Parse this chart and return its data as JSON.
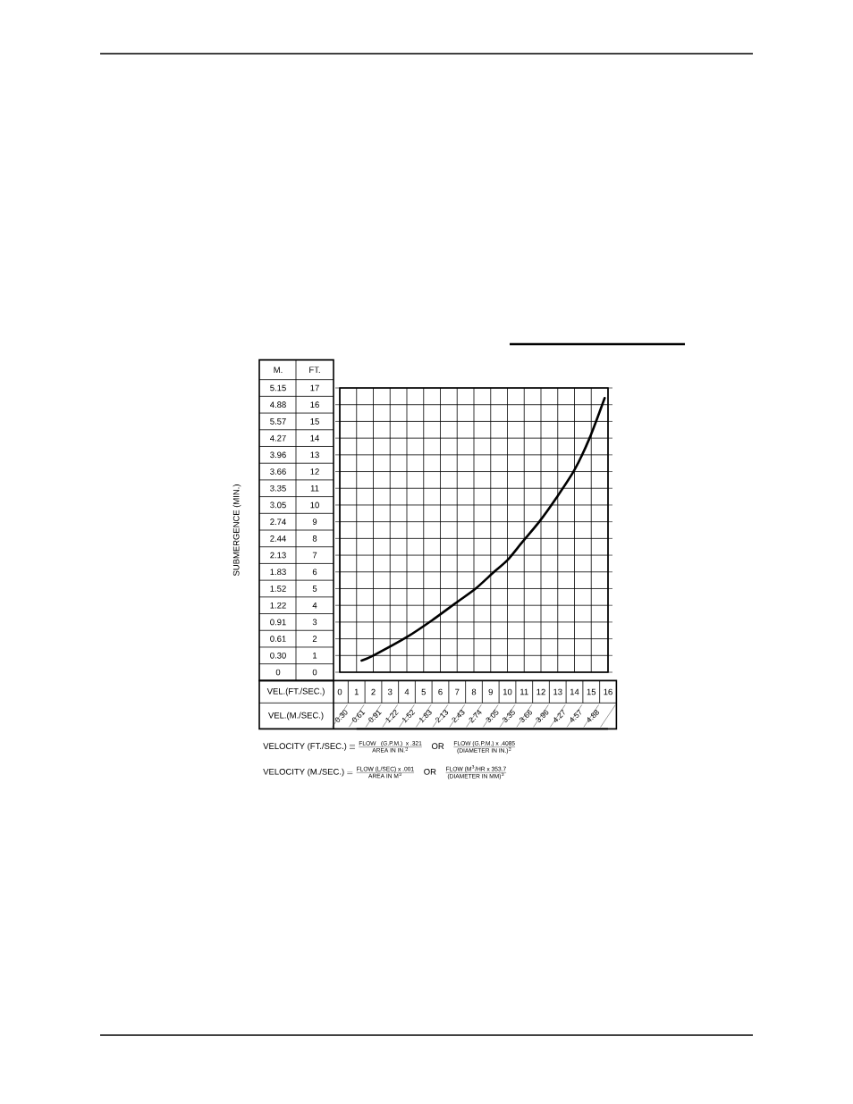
{
  "chart_data": {
    "type": "line",
    "xlabel": "VEL.(FT./SEC.)",
    "x2label": "VEL.(M./SEC.)",
    "annotations": [
      "SUBMERGENCE (MIN.)",
      "M.",
      "FT.",
      "5.15",
      "4.88",
      "5.57",
      "4.27",
      "3.96",
      "3.66",
      "3.35",
      "3.05",
      "2.74",
      "2.44",
      "2.13",
      "1.83",
      "1.52",
      "1.22",
      "0.91",
      "0.61",
      "0.30",
      "0",
      "\\text{VELOCITY (FT./SEC.)}\\equiv \\frac{\\text{FLOW \\ \\ (G.P.M.) \\ x .321}}{\\text{AREA IN IN.}^{2}}\\quad\\text{OR}\\quad\\frac{\\text{FLOW (G.P.M.) x .4085}}{\\text{(DIAMETER IN IN.)}^{2}}",
      "\\text{VELOCITY (M./SEC.)}= \\frac{\\text{FLOW (L/SEC) x .001}}{\\text{AREA IN M}^{2}}\\quad\\text{OR}\\quad\\frac{\\text{FLOW (M}^{3}\\text{/HR x 353.7}}{\\text{(DIAMETER IN MM)}^{2}}"
    ],
    "xlim": [
      0,
      16
    ],
    "xticks": [
      0,
      1,
      2,
      3,
      4,
      5,
      6,
      7,
      8,
      9,
      10,
      11,
      12,
      13,
      14,
      15,
      16
    ],
    "x2lim": [
      0.3,
      4.88
    ],
    "x2ticks": [
      {
        "value": 0.3,
        "label": "0.30"
      },
      0.61,
      0.91,
      1.22,
      1.52,
      1.83,
      2.13,
      2.43,
      2.74,
      3.05,
      3.35,
      3.66,
      3.96,
      4.27,
      4.57,
      4.88
    ],
    "ylim": [
      0,
      17
    ],
    "yticks": [
      0,
      1,
      2,
      3,
      4,
      5,
      6,
      7,
      8,
      9,
      10,
      11,
      12,
      13,
      14,
      15,
      16,
      17
    ],
    "series": [
      {
        "color": "#000000",
        "x": [
          1.3,
          2,
          4,
          5.5,
          7,
          8.1,
          9.2,
          10,
          10.9,
          11.9,
          12.9,
          14,
          14.9,
          15.8
        ],
        "values": [
          0.7,
          1,
          2.1,
          3.1,
          4.2,
          5,
          6,
          6.7,
          7.8,
          9,
          10.4,
          12.1,
          14,
          16.4
        ]
      }
    ],
    "grid": true,
    "marker": "none",
    "line_style": "solid"
  }
}
